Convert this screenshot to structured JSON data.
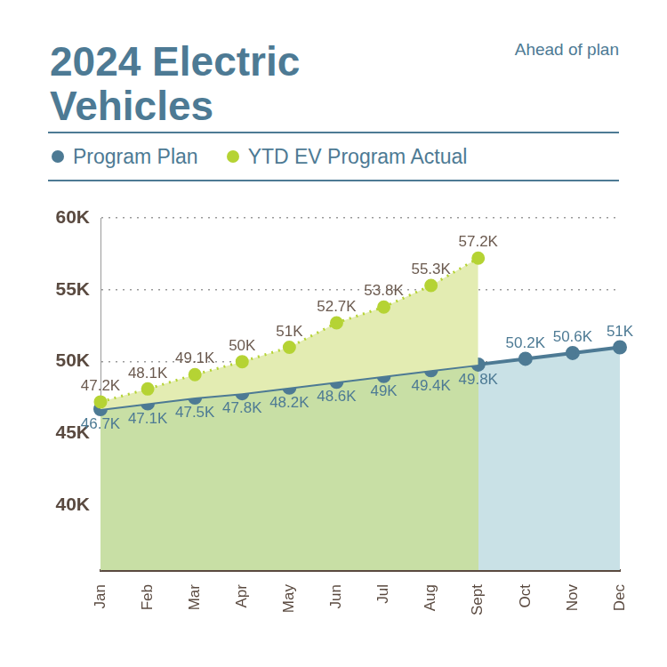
{
  "chart_data": {
    "type": "line",
    "title": "2024 Electric Vehicles",
    "subtitle": "Ahead of plan",
    "categories": [
      "Jan",
      "Feb",
      "Mar",
      "Apr",
      "May",
      "Jun",
      "Jul",
      "Aug",
      "Sept",
      "Oct",
      "Nov",
      "Dec"
    ],
    "series": [
      {
        "name": "Program Plan",
        "color": "#4d7a94",
        "marker": "circle",
        "line_style": "solid",
        "values": [
          46700,
          47100,
          47500,
          47800,
          48200,
          48600,
          49000,
          49400,
          49800,
          50200,
          50600,
          51000
        ],
        "value_labels": [
          "46.7K",
          "47.1K",
          "47.5K",
          "47.8K",
          "48.2K",
          "48.6K",
          "49K",
          "49.4K",
          "49.8K",
          "50.2K",
          "50.6K",
          "51K"
        ]
      },
      {
        "name": "YTD EV Program Actual",
        "color": "#b5d334",
        "marker": "circle",
        "line_style": "dotted",
        "values": [
          47200,
          48100,
          49100,
          50000,
          51000,
          52700,
          53800,
          55300,
          57200,
          null,
          null,
          null
        ],
        "value_labels": [
          "47.2K",
          "48.1K",
          "49.1K",
          "50K",
          "51K",
          "52.7K",
          "53.8K",
          "55.3K",
          "57.2K",
          null,
          null,
          null
        ]
      }
    ],
    "ylim": [
      35500,
      60000
    ],
    "yticks": [
      {
        "value": 40000,
        "label": "40K"
      },
      {
        "value": 45000,
        "label": "45K"
      },
      {
        "value": 50000,
        "label": "50K"
      },
      {
        "value": 55000,
        "label": "55K"
      },
      {
        "value": 60000,
        "label": "60K"
      }
    ],
    "grid": true,
    "legend": "top",
    "data_labels": true
  }
}
